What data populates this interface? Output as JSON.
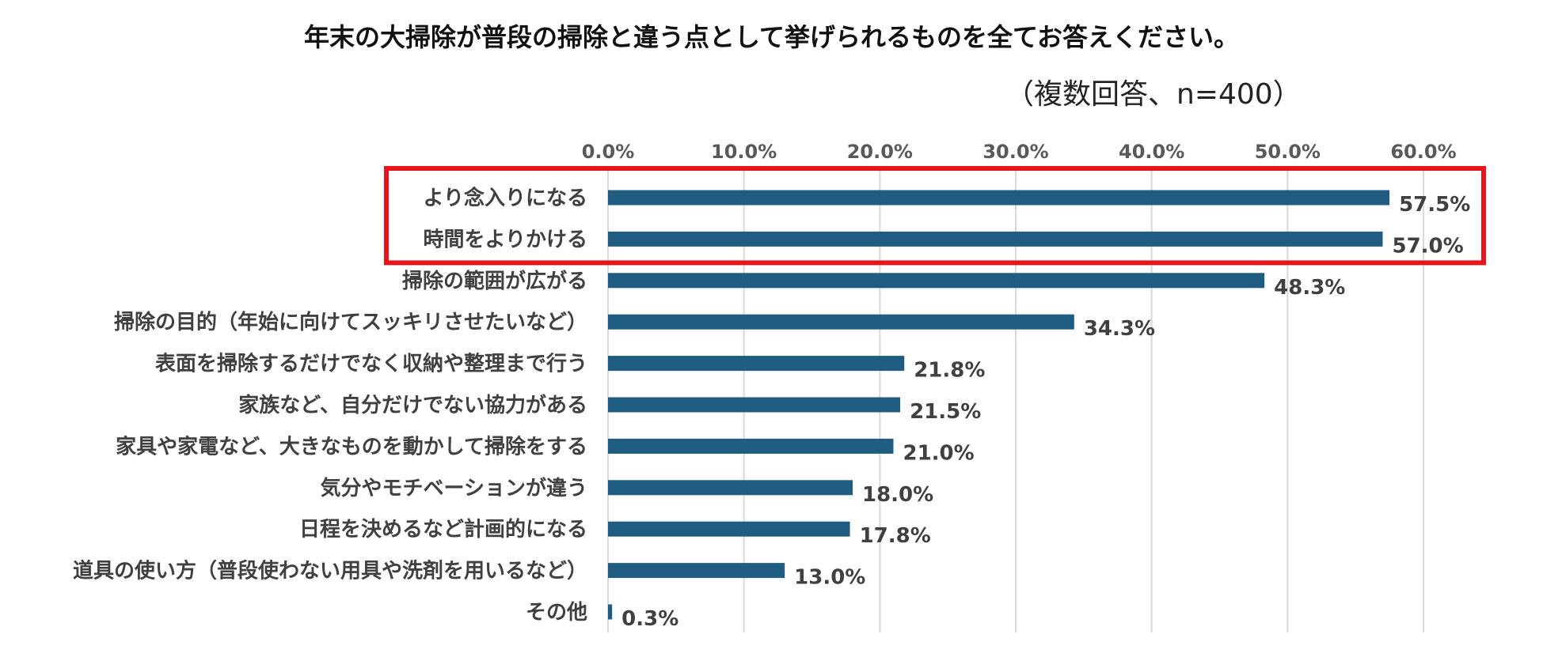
{
  "chart_data": {
    "type": "bar",
    "orientation": "horizontal",
    "title": "年末の大掃除が普段の掃除と違う点として挙げられるものを全てお答えください。",
    "subtitle": "（複数回答、n=400）",
    "xlabel": "",
    "ylabel": "",
    "xlim": [
      0,
      60
    ],
    "ticks": [
      "0.0%",
      "10.0%",
      "20.0%",
      "30.0%",
      "40.0%",
      "50.0%",
      "60.0%"
    ],
    "tick_values": [
      0,
      10,
      20,
      30,
      40,
      50,
      60
    ],
    "grid": true,
    "axis_position": "top",
    "categories": [
      "より念入りになる",
      "時間をよりかける",
      "掃除の範囲が広がる",
      "掃除の目的（年始に向けてスッキリさせたいなど）",
      "表面を掃除するだけでなく収納や整理まで行う",
      "家族など、自分だけでない協力がある",
      "家具や家電など、大きなものを動かして掃除をする",
      "気分やモチベーションが違う",
      "日程を決めるなど計画的になる",
      "道具の使い方（普段使わない用具や洗剤を用いるなど）",
      "その他"
    ],
    "values": [
      57.5,
      57.0,
      48.3,
      34.3,
      21.8,
      21.5,
      21.0,
      18.0,
      17.8,
      13.0,
      0.3
    ],
    "value_labels": [
      "57.5%",
      "57.0%",
      "48.3%",
      "34.3%",
      "21.8%",
      "21.5%",
      "21.0%",
      "18.0%",
      "17.8%",
      "13.0%",
      "0.3%"
    ],
    "highlight": {
      "categories": [
        "より念入りになる",
        "時間をよりかける"
      ],
      "color": "#e8141b"
    },
    "colors": {
      "bar": "#1f5c82",
      "grid": "#d9d9d9",
      "text": "#404040",
      "tick": "#595959"
    }
  }
}
